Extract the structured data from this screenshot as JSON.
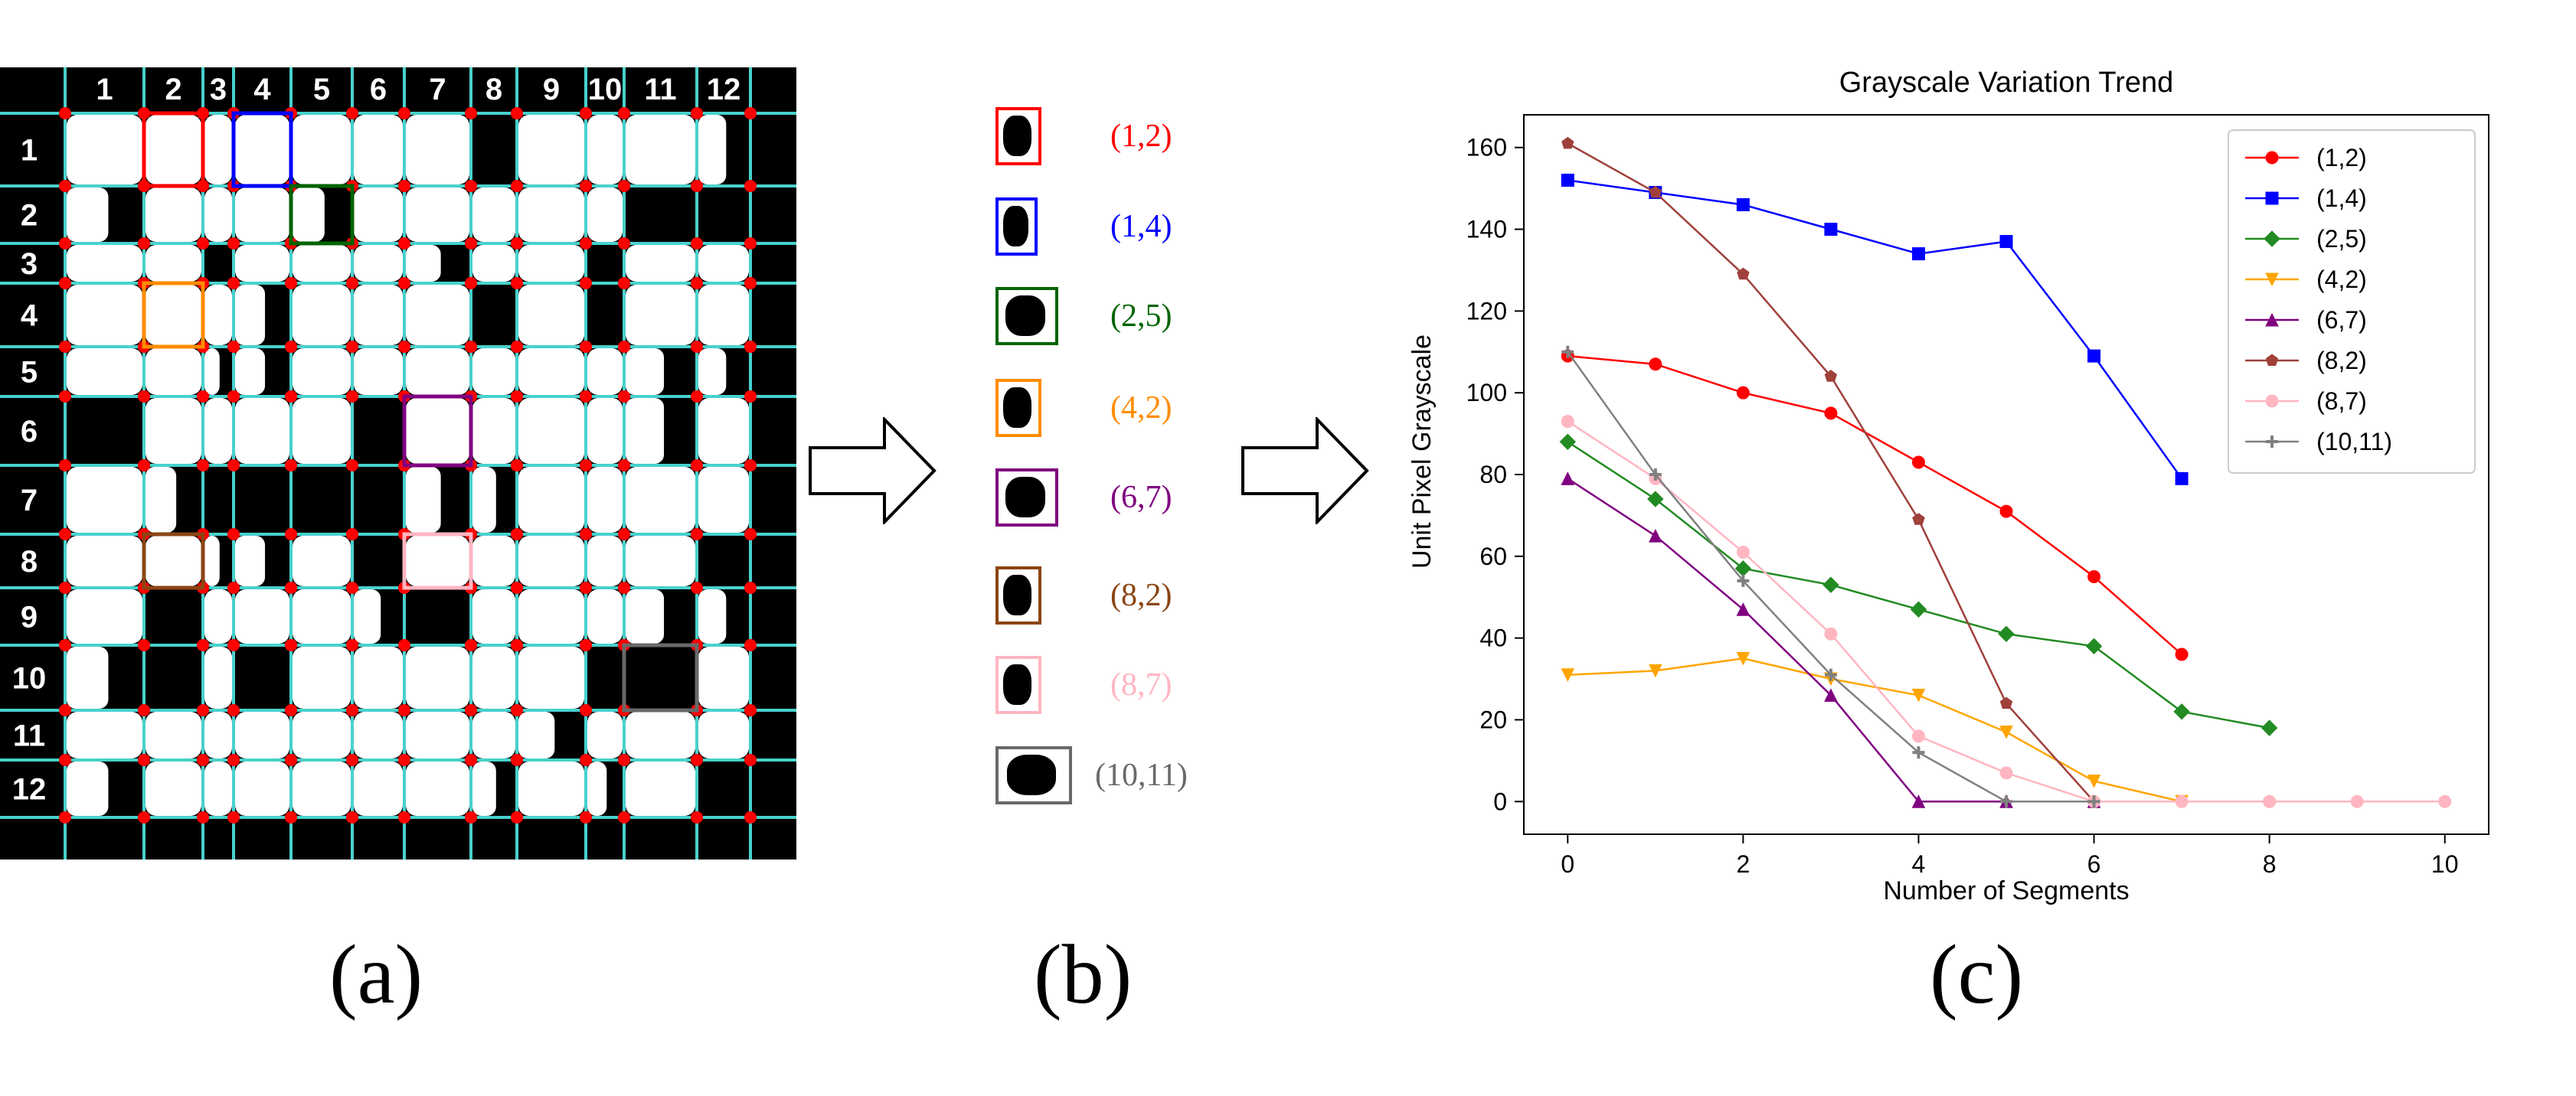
{
  "panel_a": {
    "caption": "(a)",
    "columns": [
      "1",
      "2",
      "3",
      "4",
      "5",
      "6",
      "7",
      "8",
      "9",
      "10",
      "11",
      "12"
    ],
    "rows": [
      "1",
      "2",
      "3",
      "4",
      "5",
      "6",
      "7",
      "8",
      "9",
      "10",
      "11",
      "12"
    ],
    "highlights": [
      {
        "label": "(1,2)",
        "color": "#ff0000"
      },
      {
        "label": "(1,4)",
        "color": "#0000ff"
      },
      {
        "label": "(2,5)",
        "color": "#006400"
      },
      {
        "label": "(4,2)",
        "color": "#ff8c00"
      },
      {
        "label": "(6,7)",
        "color": "#800080"
      },
      {
        "label": "(8,2)",
        "color": "#8b4513"
      },
      {
        "label": "(8,7)",
        "color": "#ffb6c1"
      },
      {
        "label": "(10,11)",
        "color": "#696969"
      }
    ]
  },
  "panel_b": {
    "caption": "(b)",
    "items": [
      {
        "label": "(1,2)",
        "color": "#ff0000"
      },
      {
        "label": "(1,4)",
        "color": "#0000ff"
      },
      {
        "label": "(2,5)",
        "color": "#006400"
      },
      {
        "label": "(4,2)",
        "color": "#ff8c00"
      },
      {
        "label": "(6,7)",
        "color": "#800080"
      },
      {
        "label": "(8,2)",
        "color": "#8b4513"
      },
      {
        "label": "(8,7)",
        "color": "#ffb6c1"
      },
      {
        "label": "(10,11)",
        "color": "#696969"
      }
    ]
  },
  "panel_c": {
    "caption": "(c)"
  },
  "chart_data": {
    "type": "line",
    "title": "Grayscale Variation Trend",
    "xlabel": "Number of Segments",
    "ylabel": "Unit Pixel Grayscale",
    "xlim": [
      -0.5,
      10.5
    ],
    "ylim": [
      -8,
      168
    ],
    "xticks": [
      0,
      2,
      4,
      6,
      8,
      10
    ],
    "yticks": [
      0,
      20,
      40,
      60,
      80,
      100,
      120,
      140,
      160
    ],
    "grid": false,
    "legend_position": "top-right",
    "series": [
      {
        "name": "(1,2)",
        "color": "#ff0000",
        "marker": "circle",
        "x": [
          0,
          1,
          2,
          3,
          4,
          5,
          6,
          7
        ],
        "y": [
          109,
          107,
          100,
          95,
          83,
          71,
          55,
          36
        ]
      },
      {
        "name": "(1,4)",
        "color": "#0000ff",
        "marker": "square",
        "x": [
          0,
          1,
          2,
          3,
          4,
          5,
          6,
          7
        ],
        "y": [
          152,
          149,
          146,
          140,
          134,
          137,
          109,
          79
        ]
      },
      {
        "name": "(2,5)",
        "color": "#228b22",
        "marker": "diamond",
        "x": [
          0,
          1,
          2,
          3,
          4,
          5,
          6,
          7,
          8
        ],
        "y": [
          88,
          74,
          57,
          53,
          47,
          41,
          38,
          22,
          18
        ]
      },
      {
        "name": "(4,2)",
        "color": "#ffa500",
        "marker": "triangle-down",
        "x": [
          0,
          1,
          2,
          3,
          4,
          5,
          6,
          7
        ],
        "y": [
          31,
          32,
          35,
          30,
          26,
          17,
          5,
          0
        ]
      },
      {
        "name": "(6,7)",
        "color": "#800080",
        "marker": "triangle-up",
        "x": [
          0,
          1,
          2,
          3,
          4,
          5,
          6
        ],
        "y": [
          79,
          65,
          47,
          26,
          0,
          0,
          0
        ]
      },
      {
        "name": "(8,2)",
        "color": "#a0403a",
        "marker": "pentagon",
        "x": [
          0,
          1,
          2,
          3,
          4,
          5,
          6,
          7,
          8
        ],
        "y": [
          161,
          149,
          129,
          104,
          69,
          24,
          0,
          0,
          0
        ]
      },
      {
        "name": "(8,7)",
        "color": "#ffb6c1",
        "marker": "circle",
        "x": [
          0,
          1,
          2,
          3,
          4,
          5,
          6,
          7,
          8,
          9,
          10
        ],
        "y": [
          93,
          79,
          61,
          41,
          16,
          7,
          0,
          0,
          0,
          0,
          0
        ]
      },
      {
        "name": "(10,11)",
        "color": "#808080",
        "marker": "plus",
        "x": [
          0,
          1,
          2,
          3,
          4,
          5,
          6
        ],
        "y": [
          110,
          80,
          54,
          31,
          12,
          0,
          0
        ]
      }
    ]
  }
}
